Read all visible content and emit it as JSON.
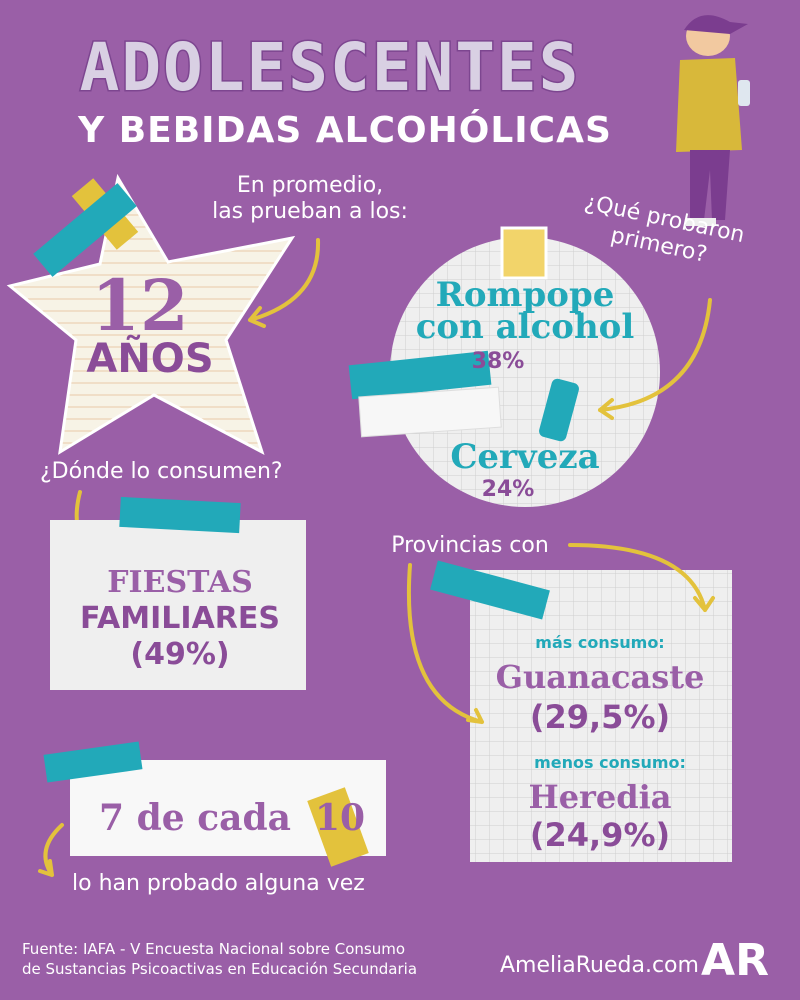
{
  "header": {
    "title": "ADOLESCENTES",
    "subtitle": "Y BEBIDAS ALCOHÓLICAS"
  },
  "age": {
    "intro": [
      "En promedio,",
      "las prueban a los:"
    ],
    "value": "12",
    "unit": "AÑOS"
  },
  "first_drink": {
    "question": [
      "¿Qué probaron",
      "primero?"
    ],
    "items": [
      {
        "label": [
          "Rompope",
          "con alcohol"
        ],
        "share": "38%"
      },
      {
        "label": [
          "Cerveza"
        ],
        "share": "24%"
      }
    ]
  },
  "where": {
    "question": "¿Dónde lo consumen?",
    "answer": [
      "FIESTAS",
      "FAMILIARES",
      "(49%)"
    ]
  },
  "provinces": {
    "intro": "Provincias con",
    "most": {
      "label": "más consumo:",
      "name": "Guanacaste",
      "share": "(29,5%)"
    },
    "least": {
      "label": "menos consumo:",
      "name": "Heredia",
      "share": "(24,9%)"
    }
  },
  "tried": {
    "count": "7 de cada",
    "total": "10",
    "note": "lo han probado alguna vez"
  },
  "footer": {
    "source": [
      "Fuente: IAFA - V Encuesta Nacional sobre Consumo",
      "de Sustancias Psicoactivas en Educación Secundaria"
    ],
    "site": "AmeliaRueda.com",
    "logo": "AR"
  }
}
